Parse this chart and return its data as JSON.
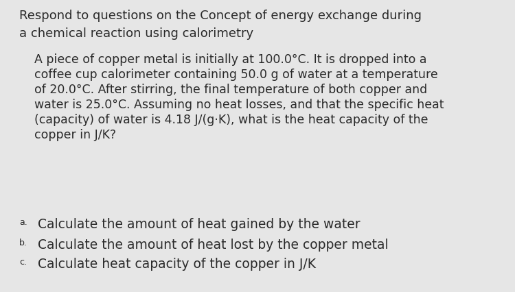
{
  "background_color": "#e6e6e6",
  "title_line1": "Respond to questions on the Concept of energy exchange during",
  "title_line2": "a chemical reaction using calorimetry",
  "paragraph_lines": [
    "A piece of copper metal is initially at 100.0°C. It is dropped into a",
    "coffee cup calorimeter containing 50.0 g of water at a temperature",
    "of 20.0°C. After stirring, the final temperature of both copper and",
    "water is 25.0°C. Assuming no heat losses, and that the specific heat",
    "(capacity) of water is 4.18 J/(g·K), what is the heat capacity of the",
    "copper in J/K?"
  ],
  "items": [
    {
      "label": "a.",
      "text": "Calculate the amount of heat gained by the water"
    },
    {
      "label": "b.",
      "text": "Calculate the amount of heat lost by the copper metal"
    },
    {
      "label": "c.",
      "text": "Calculate heat capacity of the copper in J/K"
    }
  ],
  "text_color": "#2a2a2a",
  "title_fontsize": 13.0,
  "paragraph_fontsize": 12.5,
  "item_fontsize": 13.5,
  "item_label_fontsize": 9.0,
  "font_family": "Georgia"
}
